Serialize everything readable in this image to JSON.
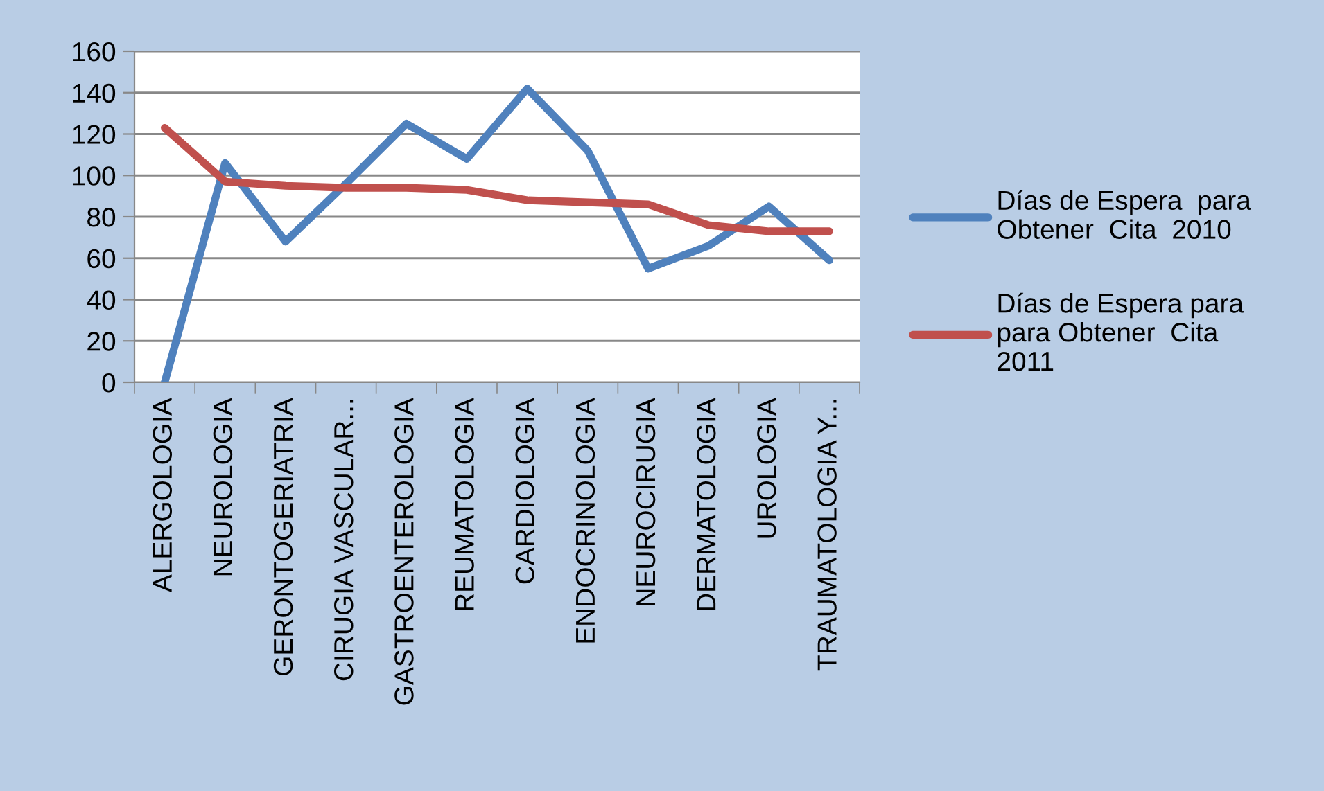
{
  "chart_data": {
    "type": "line",
    "categories": [
      "ALERGOLOGIA",
      "NEUROLOGIA",
      "GERONTOGERIATRIA",
      "CIRUGIA VASCULAR...",
      "GASTROENTEROLOGIA",
      "REUMATOLOGIA",
      "CARDIOLOGIA",
      "ENDOCRINOLOGIA",
      "NEUROCIRUGIA",
      "DERMATOLOGIA",
      "UROLOGIA",
      "TRAUMATOLOGIA Y..."
    ],
    "series": [
      {
        "name": "Días de Espera  para\nObtener  Cita  2010",
        "color": "#4f81bd",
        "values": [
          0,
          106,
          68,
          96,
          125,
          108,
          142,
          112,
          55,
          66,
          85,
          59
        ]
      },
      {
        "name": "Días de Espera para\npara Obtener  Cita\n2011",
        "color": "#c0504d",
        "values": [
          123,
          97,
          95,
          94,
          94,
          93,
          88,
          87,
          86,
          76,
          73,
          73
        ]
      }
    ],
    "ylim": [
      0,
      160
    ],
    "yticks": [
      0,
      20,
      40,
      60,
      80,
      100,
      120,
      140,
      160
    ],
    "grid": "y",
    "legend": "right",
    "marker": "none",
    "line_style": "solid"
  }
}
